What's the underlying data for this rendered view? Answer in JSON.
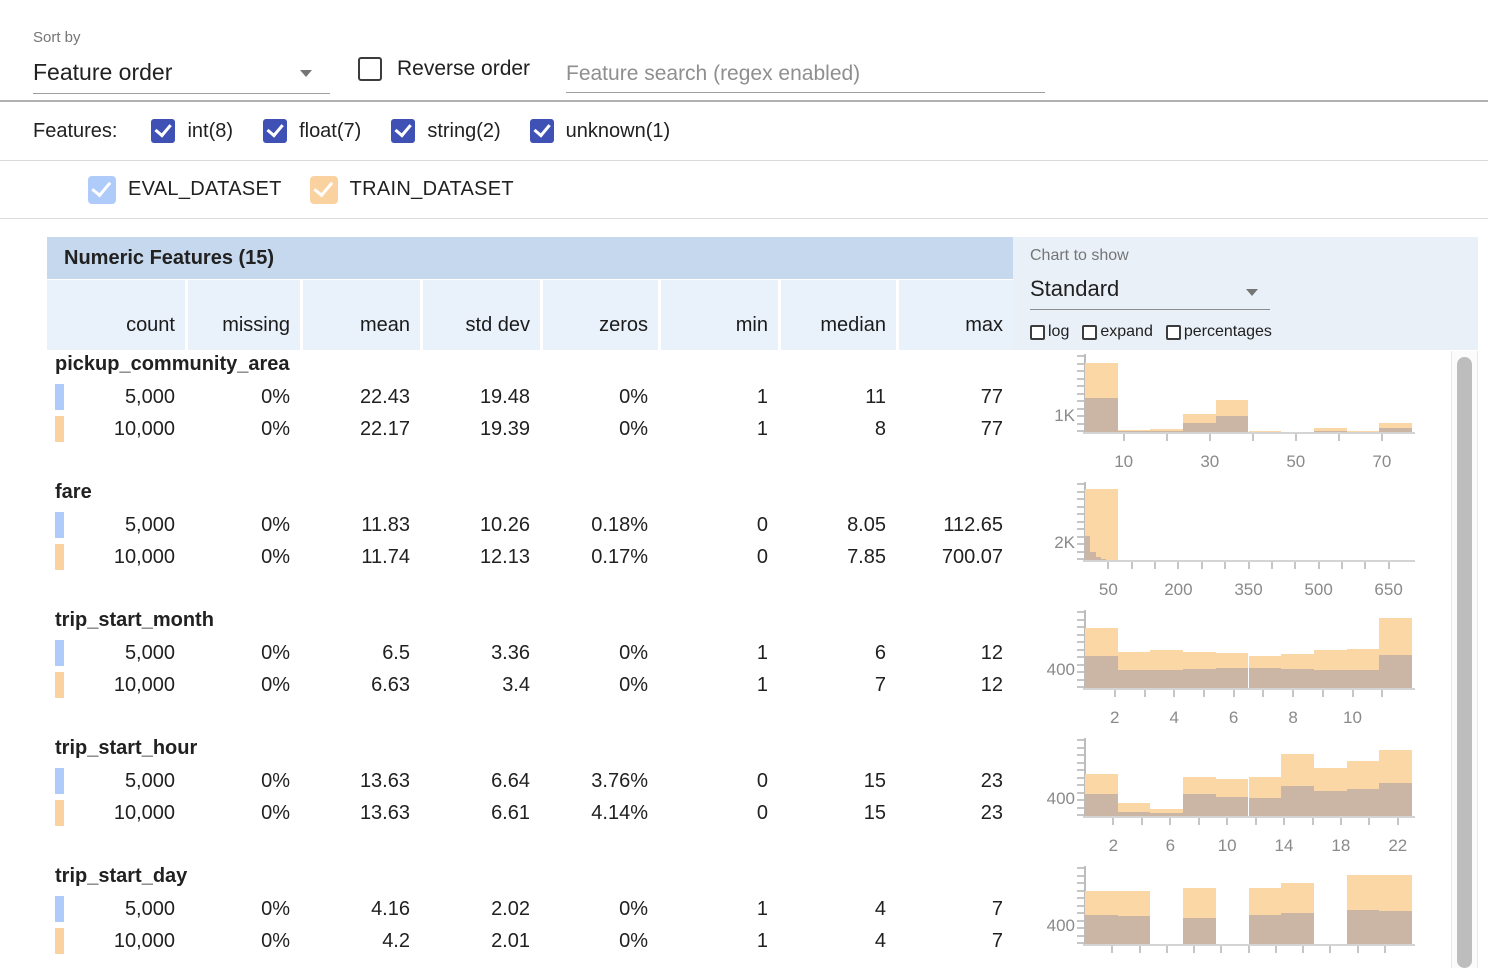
{
  "toolbar": {
    "sort_by_label": "Sort by",
    "sort_value": "Feature order",
    "reverse_label": "Reverse order",
    "search_placeholder": "Feature search (regex enabled)"
  },
  "filters": {
    "label": "Features:",
    "items": [
      {
        "label": "int(8)",
        "checked": true
      },
      {
        "label": "float(7)",
        "checked": true
      },
      {
        "label": "string(2)",
        "checked": true
      },
      {
        "label": "unknown(1)",
        "checked": true
      }
    ],
    "checkbox_color": "#3f51b5"
  },
  "datasets": [
    {
      "name": "EVAL_DATASET",
      "color": "#aecbfa",
      "checked": true
    },
    {
      "name": "TRAIN_DATASET",
      "color": "#fad2a0",
      "checked": true
    }
  ],
  "table": {
    "title": "Numeric Features (15)",
    "columns": [
      "count",
      "missing",
      "mean",
      "std dev",
      "zeros",
      "min",
      "median",
      "max"
    ],
    "features": [
      {
        "name": "pickup_community_area",
        "rows": [
          {
            "dataset": "EVAL_DATASET",
            "values": [
              "5,000",
              "0%",
              "22.43",
              "19.48",
              "0%",
              "1",
              "11",
              "77"
            ]
          },
          {
            "dataset": "TRAIN_DATASET",
            "values": [
              "10,000",
              "0%",
              "22.17",
              "19.39",
              "0%",
              "1",
              "8",
              "77"
            ]
          }
        ]
      },
      {
        "name": "fare",
        "rows": [
          {
            "dataset": "EVAL_DATASET",
            "values": [
              "5,000",
              "0%",
              "11.83",
              "10.26",
              "0.18%",
              "0",
              "8.05",
              "112.65"
            ]
          },
          {
            "dataset": "TRAIN_DATASET",
            "values": [
              "10,000",
              "0%",
              "11.74",
              "12.13",
              "0.17%",
              "0",
              "7.85",
              "700.07"
            ]
          }
        ]
      },
      {
        "name": "trip_start_month",
        "rows": [
          {
            "dataset": "EVAL_DATASET",
            "values": [
              "5,000",
              "0%",
              "6.5",
              "3.36",
              "0%",
              "1",
              "6",
              "12"
            ]
          },
          {
            "dataset": "TRAIN_DATASET",
            "values": [
              "10,000",
              "0%",
              "6.63",
              "3.4",
              "0%",
              "1",
              "7",
              "12"
            ]
          }
        ]
      },
      {
        "name": "trip_start_hour",
        "rows": [
          {
            "dataset": "EVAL_DATASET",
            "values": [
              "5,000",
              "0%",
              "13.63",
              "6.64",
              "3.76%",
              "0",
              "15",
              "23"
            ]
          },
          {
            "dataset": "TRAIN_DATASET",
            "values": [
              "10,000",
              "0%",
              "13.63",
              "6.61",
              "4.14%",
              "0",
              "15",
              "23"
            ]
          }
        ]
      },
      {
        "name": "trip_start_day",
        "rows": [
          {
            "dataset": "EVAL_DATASET",
            "values": [
              "5,000",
              "0%",
              "4.16",
              "2.02",
              "0%",
              "1",
              "4",
              "7"
            ]
          },
          {
            "dataset": "TRAIN_DATASET",
            "values": [
              "10,000",
              "0%",
              "4.2",
              "2.01",
              "0%",
              "1",
              "4",
              "7"
            ]
          }
        ]
      }
    ]
  },
  "chart_controls": {
    "label": "Chart to show",
    "value": "Standard",
    "options": [
      {
        "label": "log",
        "checked": false
      },
      {
        "label": "expand",
        "checked": false
      },
      {
        "label": "percentages",
        "checked": false
      }
    ]
  },
  "chart_data": [
    {
      "type": "histogram",
      "feature": "pickup_community_area",
      "ylabel": "1K",
      "ylabel_value": 1000,
      "ymax": 4900,
      "xmin": 1,
      "xmax": 77,
      "xticks": [
        10,
        30,
        50,
        70
      ],
      "tick_start": 10,
      "tick_step": 10,
      "series": [
        {
          "name": "TRAIN_DATASET",
          "color": "#fbd7a6",
          "bin_start": 1,
          "bin_width": 7.6,
          "counts": [
            4450,
            130,
            180,
            1150,
            2050,
            60,
            40,
            270,
            60,
            600
          ]
        },
        {
          "name": "EVAL_DATASET_overlap",
          "color": "#cbb5a4",
          "bin_start": 1,
          "bin_width": 7.6,
          "counts": [
            2200,
            60,
            80,
            600,
            1050,
            30,
            20,
            60,
            30,
            270
          ]
        }
      ]
    },
    {
      "type": "histogram",
      "feature": "fare",
      "ylabel": "2K",
      "ylabel_value": 2000,
      "ymax": 9000,
      "xmin": 0,
      "xmax": 700,
      "xticks": [
        50,
        200,
        350,
        500,
        650
      ],
      "tick_start": 50,
      "tick_step": 50,
      "series": [
        {
          "name": "TRAIN_DATASET",
          "color": "#fbd7a6",
          "bin_start": 0,
          "bin_width": 70,
          "counts": [
            8400,
            40,
            20,
            10,
            6,
            4,
            3,
            2,
            1,
            1
          ]
        },
        {
          "name": "EVAL_DATASET_overlap",
          "color": "#cbb5a4",
          "bin_start": 0,
          "bin_width": 11.3,
          "counts": [
            2900,
            1000,
            375,
            150,
            60,
            25,
            12,
            6,
            3,
            2
          ]
        }
      ]
    },
    {
      "type": "histogram",
      "feature": "trip_start_month",
      "ylabel": "400",
      "ylabel_value": 400,
      "ymax": 1670,
      "xmin": 1,
      "xmax": 12,
      "xticks": [
        2,
        4,
        6,
        8,
        10
      ],
      "tick_start": 2,
      "tick_step": 1,
      "series": [
        {
          "name": "TRAIN_DATASET",
          "color": "#fbd7a6",
          "bin_start": 1,
          "bin_width": 1.1,
          "counts": [
            1330,
            790,
            830,
            790,
            780,
            715,
            755,
            830,
            850,
            1550
          ]
        },
        {
          "name": "EVAL_DATASET_overlap",
          "color": "#cbb5a4",
          "bin_start": 1,
          "bin_width": 1.1,
          "counts": [
            710,
            400,
            400,
            420,
            430,
            430,
            410,
            400,
            400,
            720
          ]
        }
      ]
    },
    {
      "type": "histogram",
      "feature": "trip_start_hour",
      "ylabel": "400",
      "ylabel_value": 400,
      "ymax": 1770,
      "xmin": 0,
      "xmax": 23,
      "xticks": [
        2,
        6,
        10,
        14,
        18,
        22
      ],
      "tick_start": 2,
      "tick_step": 2,
      "series": [
        {
          "name": "TRAIN_DATASET",
          "color": "#fbd7a6",
          "bin_start": 0,
          "bin_width": 2.3,
          "counts": [
            970,
            310,
            170,
            915,
            860,
            915,
            1440,
            1110,
            1290,
            1530
          ]
        },
        {
          "name": "EVAL_DATASET_overlap",
          "color": "#cbb5a4",
          "bin_start": 0,
          "bin_width": 2.3,
          "counts": [
            520,
            95,
            70,
            520,
            450,
            430,
            700,
            590,
            640,
            780
          ]
        }
      ]
    },
    {
      "type": "histogram",
      "feature": "trip_start_day",
      "ylabel": "400",
      "ylabel_value": 400,
      "ymax": 1670,
      "xmin": 1,
      "xmax": 7,
      "xticks": [],
      "tick_start": 1.5,
      "tick_step": 0.5,
      "series": [
        {
          "name": "TRAIN_DATASET",
          "color": "#fbd7a6",
          "bin_start": 1,
          "bin_width": 0.6,
          "counts": [
            1160,
            1160,
            0,
            1240,
            0,
            1240,
            1350,
            0,
            1510,
            1510
          ]
        },
        {
          "name": "EVAL_DATASET_overlap",
          "color": "#cbb5a4",
          "bin_start": 1,
          "bin_width": 0.6,
          "counts": [
            630,
            615,
            0,
            570,
            0,
            630,
            680,
            0,
            755,
            725
          ]
        }
      ]
    }
  ]
}
